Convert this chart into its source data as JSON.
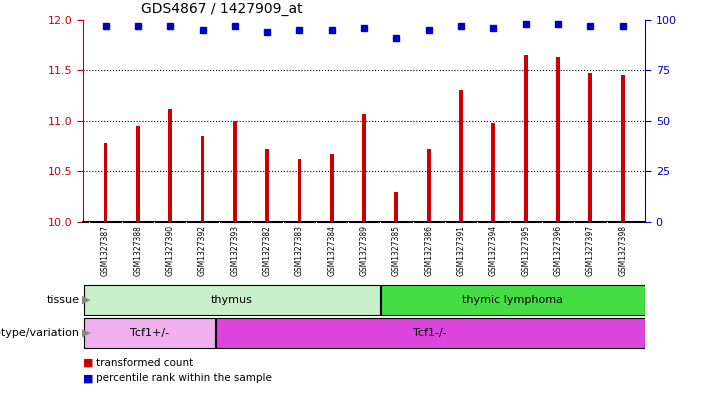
{
  "title": "GDS4867 / 1427909_at",
  "samples": [
    "GSM1327387",
    "GSM1327388",
    "GSM1327390",
    "GSM1327392",
    "GSM1327393",
    "GSM1327382",
    "GSM1327383",
    "GSM1327384",
    "GSM1327389",
    "GSM1327385",
    "GSM1327386",
    "GSM1327391",
    "GSM1327394",
    "GSM1327395",
    "GSM1327396",
    "GSM1327397",
    "GSM1327398"
  ],
  "red_values": [
    10.78,
    10.95,
    11.12,
    10.85,
    11.0,
    10.72,
    10.62,
    10.67,
    11.07,
    10.3,
    10.72,
    11.3,
    10.98,
    11.65,
    11.63,
    11.47,
    11.45
  ],
  "blue_values": [
    97,
    97,
    97,
    95,
    97,
    94,
    95,
    95,
    96,
    91,
    95,
    97,
    96,
    98,
    98,
    97,
    97
  ],
  "ylim_left": [
    10,
    12
  ],
  "ylim_right": [
    0,
    100
  ],
  "yticks_left": [
    10,
    10.5,
    11,
    11.5,
    12
  ],
  "yticks_right": [
    0,
    25,
    50,
    75,
    100
  ],
  "tissue_groups": [
    {
      "label": "thymus",
      "start": 0,
      "end": 9,
      "color": "#c8f0c8"
    },
    {
      "label": "thymic lymphoma",
      "start": 9,
      "end": 17,
      "color": "#44dd44"
    }
  ],
  "genotype_groups": [
    {
      "label": "Tcf1+/-",
      "start": 0,
      "end": 4,
      "color": "#f0b0f0"
    },
    {
      "label": "Tcf1-/-",
      "start": 4,
      "end": 17,
      "color": "#dd44dd"
    }
  ],
  "bar_color": "#cc0000",
  "dot_color": "#0000cc",
  "grid_color": "#000000",
  "label_tissue": "tissue",
  "label_genotype": "genotype/variation",
  "legend_red": "transformed count",
  "legend_blue": "percentile rank within the sample",
  "sample_bg_color": "#d0d0d0",
  "title_fontsize": 10,
  "bar_width": 0.12
}
